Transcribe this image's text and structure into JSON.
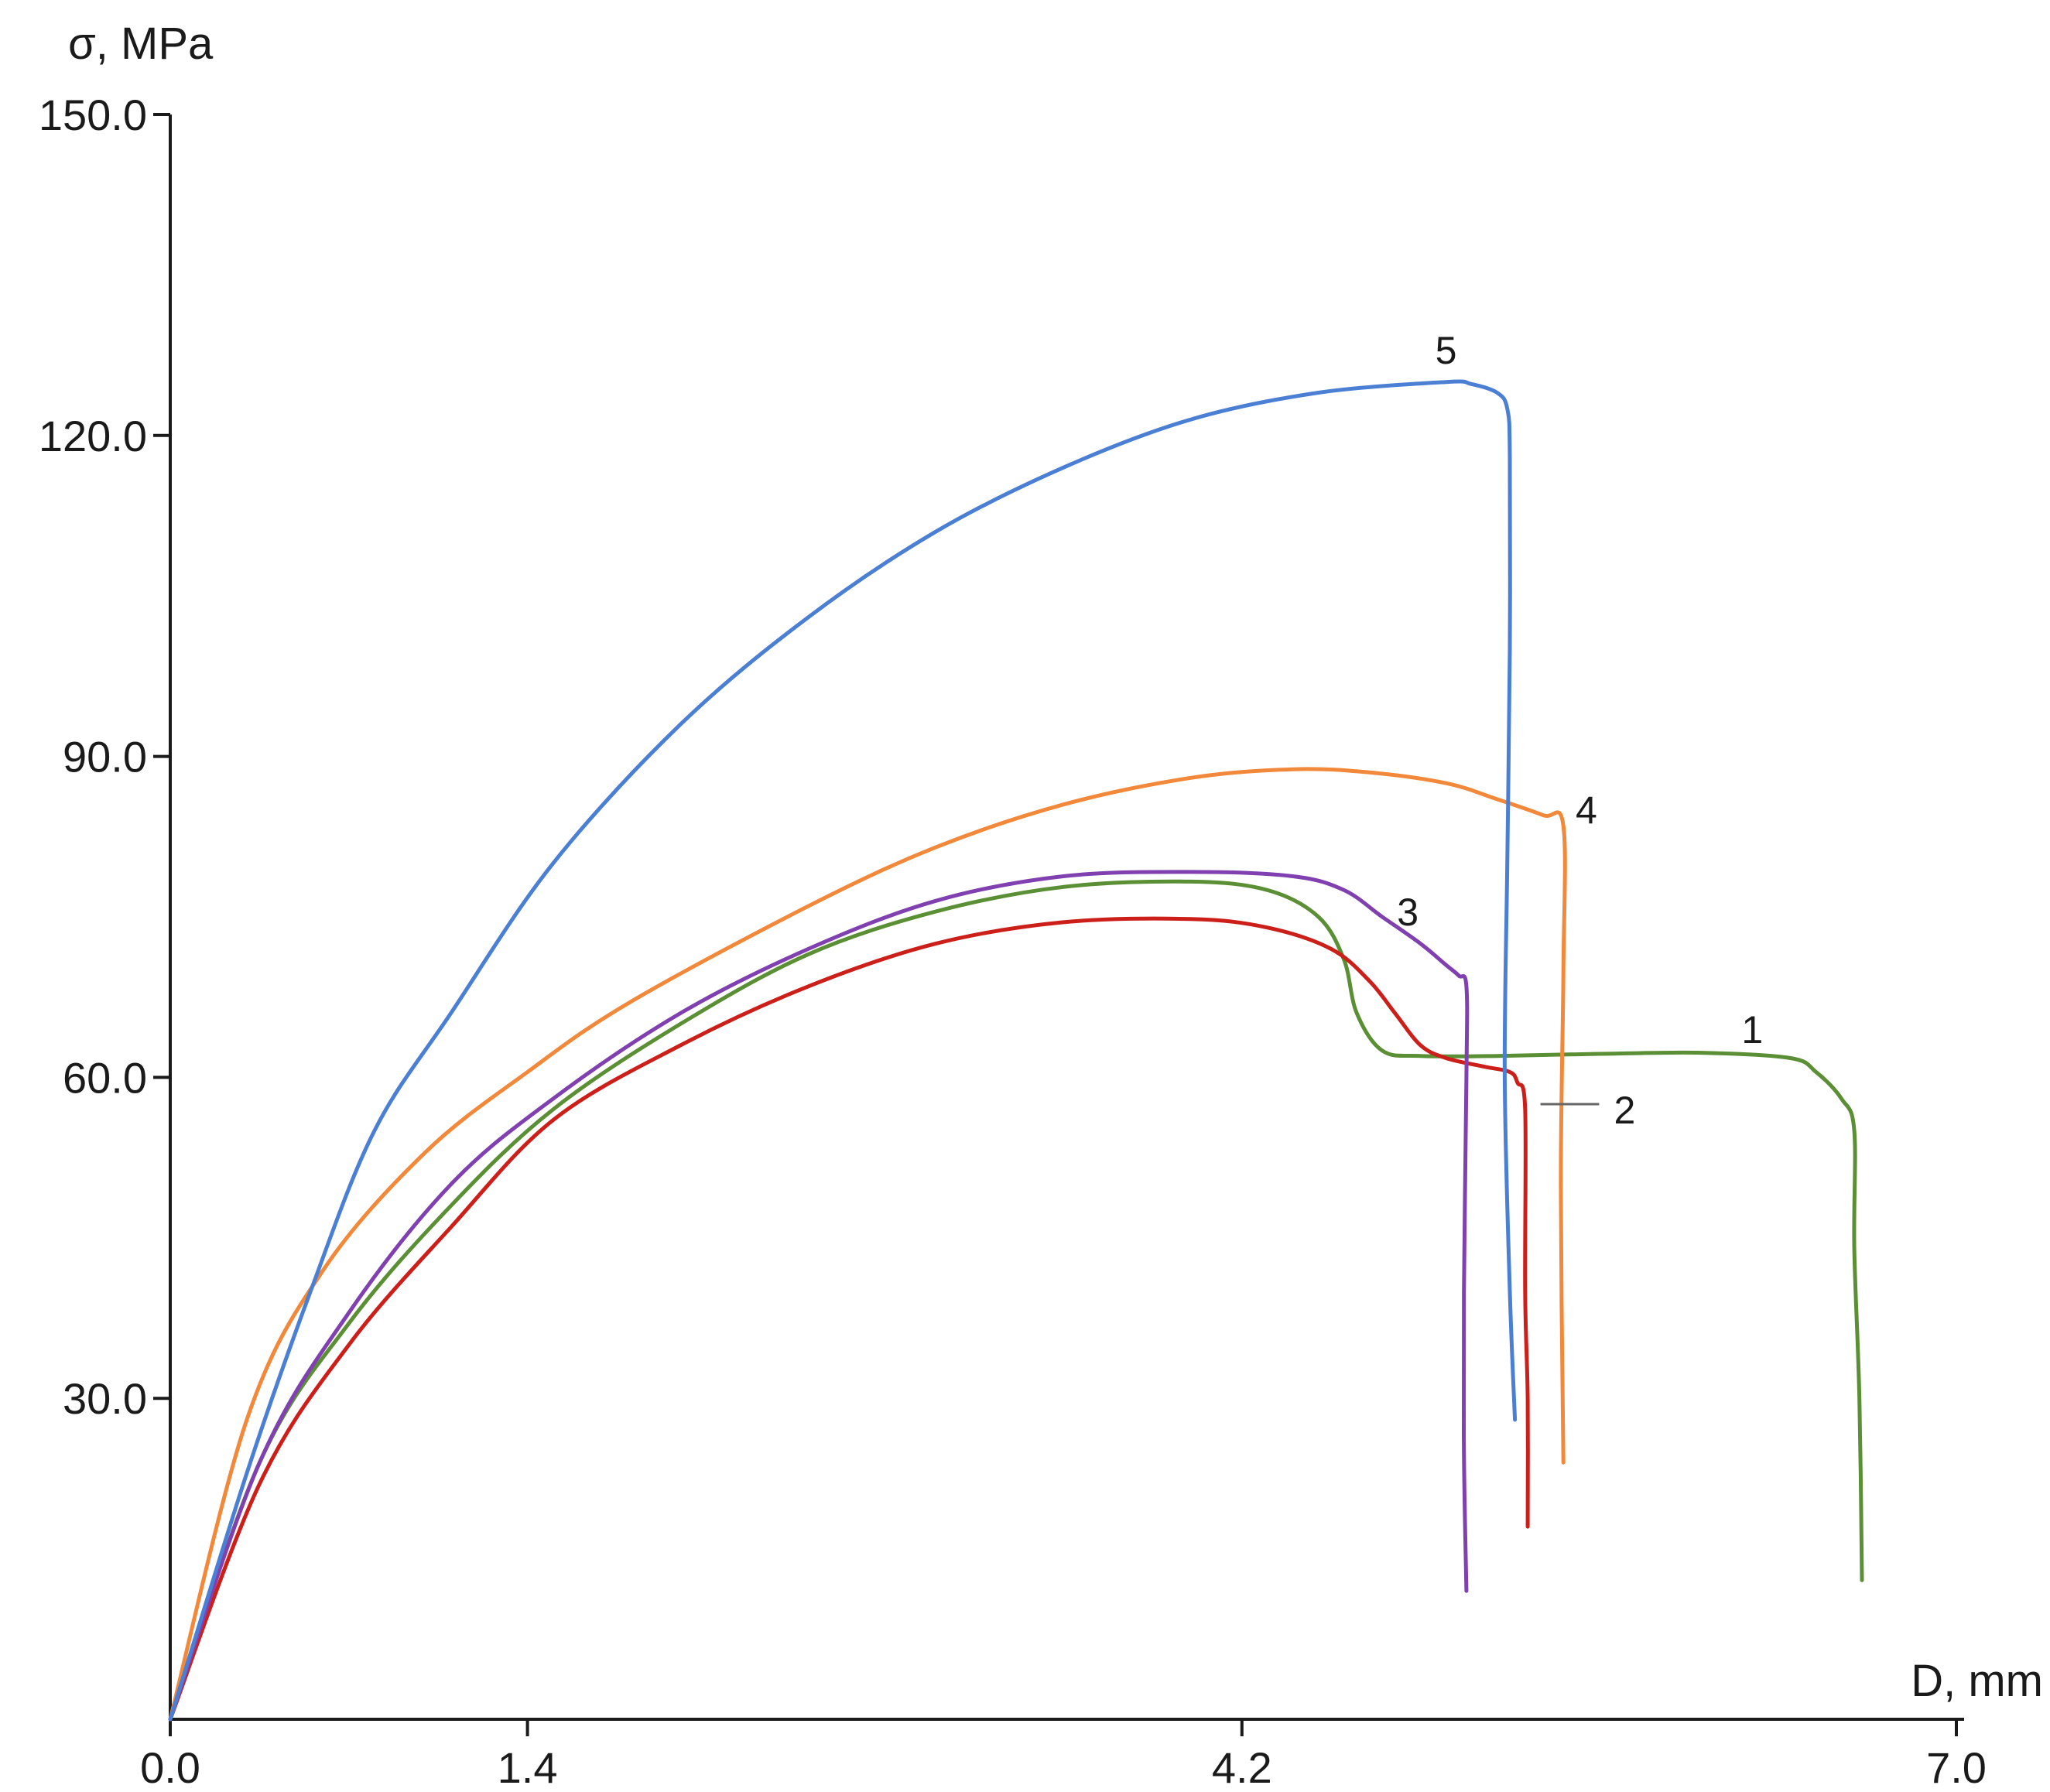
{
  "chart_data": {
    "type": "line",
    "title": "",
    "xlabel": "D, mm",
    "ylabel": "σ, MPa",
    "xlim": [
      0,
      7.0
    ],
    "ylim": [
      0,
      150.0
    ],
    "x_ticks": [
      "0.0",
      "1.4",
      "4.2",
      "7.0"
    ],
    "y_ticks": [
      "30.0",
      "60.0",
      "90.0",
      "120.0",
      "150.0"
    ],
    "grid": false,
    "legend": "none",
    "series": [
      {
        "name": "1",
        "color": "#5b8f35",
        "points": [
          [
            0,
            0
          ],
          [
            0.35,
            24
          ],
          [
            0.7,
            37
          ],
          [
            1.1,
            48
          ],
          [
            1.5,
            57
          ],
          [
            2.0,
            65
          ],
          [
            2.5,
            71.5
          ],
          [
            3.0,
            75.5
          ],
          [
            3.5,
            77.8
          ],
          [
            4.0,
            78.3
          ],
          [
            4.3,
            77.5
          ],
          [
            4.5,
            75
          ],
          [
            4.6,
            71
          ],
          [
            4.65,
            66
          ],
          [
            4.75,
            62.5
          ],
          [
            4.9,
            62
          ],
          [
            5.2,
            62
          ],
          [
            5.6,
            62.2
          ],
          [
            6.0,
            62.3
          ],
          [
            6.35,
            61.8
          ],
          [
            6.45,
            60.5
          ],
          [
            6.55,
            58
          ],
          [
            6.6,
            55
          ],
          [
            6.6,
            44
          ],
          [
            6.62,
            30
          ],
          [
            6.63,
            13
          ]
        ],
        "label_at": [
          6.2,
          64.5
        ]
      },
      {
        "name": "2",
        "color": "#cc1f1a",
        "points": [
          [
            0,
            0
          ],
          [
            0.35,
            22
          ],
          [
            0.7,
            35
          ],
          [
            1.1,
            46
          ],
          [
            1.5,
            56
          ],
          [
            2.0,
            63
          ],
          [
            2.5,
            68.5
          ],
          [
            3.0,
            72.5
          ],
          [
            3.5,
            74.5
          ],
          [
            4.0,
            74.8
          ],
          [
            4.3,
            74
          ],
          [
            4.55,
            72
          ],
          [
            4.7,
            69
          ],
          [
            4.8,
            66
          ],
          [
            4.9,
            63
          ],
          [
            5.0,
            61.8
          ],
          [
            5.15,
            61
          ],
          [
            5.25,
            60.5
          ],
          [
            5.28,
            59.5
          ],
          [
            5.31,
            57
          ],
          [
            5.31,
            40
          ],
          [
            5.32,
            30
          ],
          [
            5.32,
            18
          ]
        ],
        "label_at": [
          5.7,
          57
        ],
        "leader_from": [
          5.37,
          57.5
        ],
        "leader_to": [
          5.6,
          57.5
        ]
      },
      {
        "name": "3",
        "color": "#8040b0",
        "points": [
          [
            0,
            0
          ],
          [
            0.35,
            24
          ],
          [
            0.7,
            38
          ],
          [
            1.1,
            50
          ],
          [
            1.5,
            58
          ],
          [
            2.0,
            66
          ],
          [
            2.5,
            72
          ],
          [
            3.0,
            76.5
          ],
          [
            3.5,
            78.8
          ],
          [
            4.0,
            79.2
          ],
          [
            4.4,
            78.8
          ],
          [
            4.6,
            77.5
          ],
          [
            4.75,
            75
          ],
          [
            4.9,
            72.5
          ],
          [
            5.0,
            70.5
          ],
          [
            5.05,
            69.5
          ],
          [
            5.08,
            68.5
          ],
          [
            5.08,
            60
          ],
          [
            5.07,
            40
          ],
          [
            5.07,
            25
          ],
          [
            5.08,
            12
          ]
        ],
        "label_at": [
          4.85,
          75.5
        ]
      },
      {
        "name": "4",
        "color": "#f2883a",
        "points": [
          [
            0,
            0
          ],
          [
            0.3,
            28
          ],
          [
            0.6,
            42
          ],
          [
            1.0,
            53
          ],
          [
            1.4,
            60.5
          ],
          [
            1.8,
            67
          ],
          [
            2.5,
            76
          ],
          [
            3.0,
            81.5
          ],
          [
            3.5,
            85.5
          ],
          [
            4.0,
            88
          ],
          [
            4.4,
            88.8
          ],
          [
            4.7,
            88.5
          ],
          [
            5.0,
            87.5
          ],
          [
            5.2,
            86
          ],
          [
            5.38,
            84.5
          ],
          [
            5.46,
            83.5
          ],
          [
            5.46,
            70
          ],
          [
            5.45,
            50
          ],
          [
            5.46,
            24
          ]
        ],
        "label_at": [
          5.55,
          85
        ]
      },
      {
        "name": "5",
        "color": "#4a7fd4",
        "points": [
          [
            0,
            0
          ],
          [
            0.3,
            23
          ],
          [
            0.55,
            40
          ],
          [
            0.8,
            55
          ],
          [
            1.1,
            66
          ],
          [
            1.5,
            80
          ],
          [
            2.0,
            93
          ],
          [
            2.5,
            103
          ],
          [
            3.0,
            111
          ],
          [
            3.5,
            117
          ],
          [
            4.0,
            121.5
          ],
          [
            4.5,
            124
          ],
          [
            5.0,
            125
          ],
          [
            5.1,
            124.8
          ],
          [
            5.2,
            124
          ],
          [
            5.24,
            122.5
          ],
          [
            5.25,
            118
          ],
          [
            5.25,
            100
          ],
          [
            5.24,
            80
          ],
          [
            5.23,
            60
          ],
          [
            5.25,
            40
          ],
          [
            5.27,
            28
          ]
        ],
        "label_at": [
          5.0,
          128
        ]
      }
    ]
  }
}
